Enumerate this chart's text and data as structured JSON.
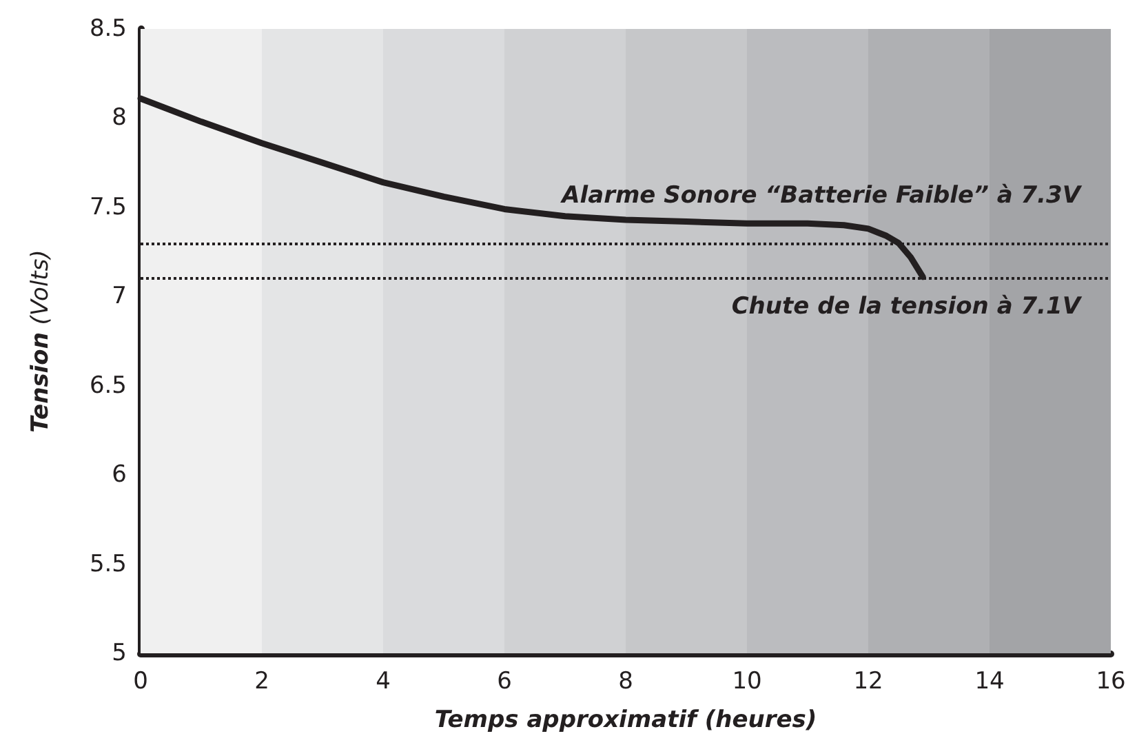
{
  "chart_data": {
    "type": "line",
    "xlabel": "Temps approximatif (heures)",
    "ylabel": "Tension (Volts)",
    "x": [
      0,
      1,
      2,
      3,
      4,
      5,
      6,
      7,
      8,
      9,
      10,
      11,
      11.6,
      12,
      12.3,
      12.5,
      12.7,
      12.9
    ],
    "series": [
      {
        "color": "#231f20",
        "values": [
          8.11,
          7.98,
          7.86,
          7.75,
          7.64,
          7.56,
          7.49,
          7.45,
          7.43,
          7.42,
          7.41,
          7.41,
          7.4,
          7.38,
          7.34,
          7.3,
          7.22,
          7.11
        ]
      }
    ],
    "xlim": [
      0,
      16
    ],
    "xticks": [
      0,
      2,
      4,
      6,
      8,
      10,
      12,
      14,
      16
    ],
    "ylim": [
      5,
      8.5
    ],
    "yticks": [
      5,
      5.5,
      6,
      6.5,
      7,
      7.5,
      8,
      8.5
    ],
    "ref_lines": [
      {
        "axis": "y",
        "value": 7.3,
        "label": "Alarme Sonore “Batterie Faible” à 7.3V",
        "color": "#231f20",
        "line_style": "dotted"
      },
      {
        "axis": "y",
        "value": 7.1,
        "label": "Chute de la tension à 7.1V",
        "color": "#231f20",
        "line_style": "dotted"
      }
    ],
    "bands": [
      {
        "axis": "x",
        "from": 0,
        "to": 2,
        "color": "#f0f0f0"
      },
      {
        "axis": "x",
        "from": 2,
        "to": 4,
        "color": "#e4e5e6"
      },
      {
        "axis": "x",
        "from": 4,
        "to": 6,
        "color": "#dadbdd"
      },
      {
        "axis": "x",
        "from": 6,
        "to": 8,
        "color": "#d0d1d3"
      },
      {
        "axis": "x",
        "from": 8,
        "to": 10,
        "color": "#c6c7c9"
      },
      {
        "axis": "x",
        "from": 10,
        "to": 12,
        "color": "#bbbcbf"
      },
      {
        "axis": "x",
        "from": 12,
        "to": 14,
        "color": "#afb0b3"
      },
      {
        "axis": "x",
        "from": 14,
        "to": 16,
        "color": "#a3a4a7"
      }
    ],
    "grid": false,
    "marker": "none",
    "line_style": "solid"
  }
}
